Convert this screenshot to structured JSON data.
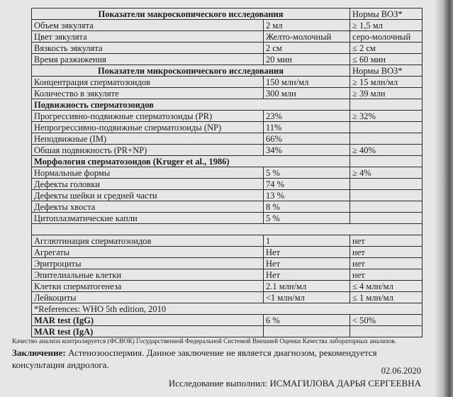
{
  "macro": {
    "title": "Показатели макроскопического исследования",
    "norms_header": "Нормы ВОЗ*",
    "rows": [
      {
        "name": "Объем эякулята",
        "value": "2 мл",
        "norm": "≥ 1,5 мл"
      },
      {
        "name": "Цвет эякулята",
        "value": "Желто-молочный",
        "norm": "серо-молочный"
      },
      {
        "name": "Вязкость эякулята",
        "value": "2 см",
        "norm": "≤ 2 см"
      },
      {
        "name": "Время разжижения",
        "value": "20 мин",
        "norm": "≤ 60 мин"
      }
    ]
  },
  "micro": {
    "title": "Показатели микроскопического исследования",
    "norms_header": "Нормы ВОЗ*",
    "rows": [
      {
        "name": "Концентрация сперматозоидов",
        "value": "150 млн/мл",
        "norm": "≥ 15 млн/мл"
      },
      {
        "name": "Количество в эякуляте",
        "value": "300  млн",
        "norm": "≥ 39 млн"
      }
    ]
  },
  "motility": {
    "title": "Подвижность сперматозоидов",
    "rows": [
      {
        "name": "Прогрессивно-подвижные сперматозоиды (PR)",
        "value": "23%",
        "norm": "≥ 32%"
      },
      {
        "name": "Непрогрессивно-подвижные сперматозоиды (NP)",
        "value": "11%",
        "norm": ""
      },
      {
        "name": "Неподвижные (IM)",
        "value": "66%",
        "norm": ""
      },
      {
        "name": "Обшая подвижность (PR+NP)",
        "value": "34%",
        "norm": "≥ 40%"
      }
    ]
  },
  "morphology": {
    "title": "Морфология сперматозоидов (Kruger et al., 1986)",
    "rows": [
      {
        "name": "Нормальные формы",
        "value": "5 %",
        "norm": "≥ 4%"
      },
      {
        "name": "Дефекты головки",
        "value": "74 %",
        "norm": ""
      },
      {
        "name": "Дефекты шейки и средней части",
        "value": "13 %",
        "norm": ""
      },
      {
        "name": "Дефекты хвоста",
        "value": "8 %",
        "norm": ""
      },
      {
        "name": "Цитоплазматические капли",
        "value": "5 %",
        "norm": ""
      }
    ]
  },
  "other": {
    "rows": [
      {
        "name": "Агглютинация сперматозоидов",
        "value": "1",
        "norm": "нет"
      },
      {
        "name": "Агрегаты",
        "value": "Нет",
        "norm": "нет"
      },
      {
        "name": "Эритроциты",
        "value": "Нет",
        "norm": "нет"
      },
      {
        "name": "Эпителиальные клетки",
        "value": "Нет",
        "norm": "нет"
      },
      {
        "name": "Клетки сперматогенеза",
        "value": "2.1 млн/мл",
        "norm": "≤ 4 млн/мл"
      },
      {
        "name": "Лейкоциты",
        "value": "<1 млн/мл",
        "norm": "≤ 1 млн/мл"
      }
    ],
    "references": "*References: WHO 5th edition, 2010"
  },
  "mar": {
    "rows": [
      {
        "name": "MAR test (IgG)",
        "value": "6 %",
        "norm": "< 50%"
      },
      {
        "name": "MAR test (IgA)",
        "value": "",
        "norm": ""
      }
    ]
  },
  "footer": {
    "quality_note": "Качество анализа контролируется (ФСВОК) Государственной Федеральной Системой Внешней Оценки Качества  лабораторных анализов.",
    "conclusion_label": "Заключение:",
    "conclusion_text": " Астенозооспермия. Данное заключение не является диагнозом, рекомендуется консультация андролога.",
    "date": "02.06.2020",
    "performed_by": "Исследование выполнил: ИСМАГИЛОВА ДАРЬЯ СЕРГЕЕВНА"
  }
}
